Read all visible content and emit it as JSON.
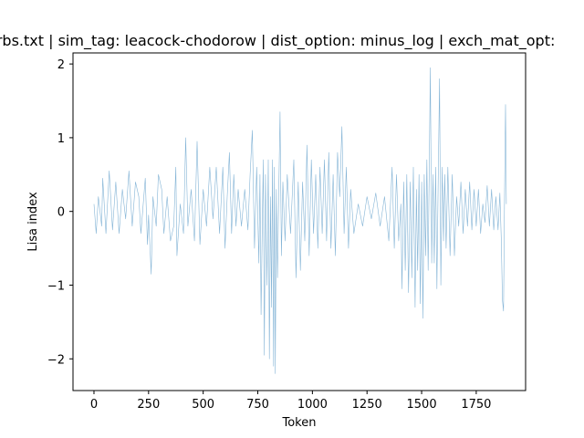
{
  "chart_data": {
    "type": "line",
    "title": "erbs.txt | sim_tag: leacock-chodorow | dist_option: minus_log | exch_mat_opt: ",
    "xlabel": "Token",
    "ylabel": "Lisa index",
    "xlim": [
      -96,
      1976
    ],
    "ylim": [
      -2.43,
      2.15
    ],
    "x_ticks": [
      0,
      250,
      500,
      750,
      1000,
      1250,
      1500,
      1750
    ],
    "x_tick_labels": [
      "0",
      "250",
      "500",
      "750",
      "1000",
      "1250",
      "1500",
      "1750"
    ],
    "y_ticks": [
      -2,
      -1,
      0,
      1,
      2
    ],
    "y_tick_labels": [
      "−2",
      "−1",
      "0",
      "1",
      "2"
    ],
    "grid": false,
    "series": [
      {
        "color": "#1f77b4",
        "points": [
          [
            0,
            0.1
          ],
          [
            10,
            -0.3
          ],
          [
            20,
            0.2
          ],
          [
            35,
            -0.2
          ],
          [
            40,
            0.45
          ],
          [
            55,
            -0.3
          ],
          [
            70,
            0.55
          ],
          [
            85,
            -0.25
          ],
          [
            100,
            0.4
          ],
          [
            115,
            -0.3
          ],
          [
            130,
            0.3
          ],
          [
            145,
            -0.1
          ],
          [
            160,
            0.55
          ],
          [
            175,
            -0.2
          ],
          [
            190,
            0.4
          ],
          [
            205,
            0.2
          ],
          [
            215,
            -0.3
          ],
          [
            235,
            0.45
          ],
          [
            245,
            -0.45
          ],
          [
            250,
            -0.05
          ],
          [
            262,
            -0.85
          ],
          [
            270,
            0.2
          ],
          [
            285,
            -0.2
          ],
          [
            295,
            0.5
          ],
          [
            310,
            0.3
          ],
          [
            320,
            -0.3
          ],
          [
            335,
            0.2
          ],
          [
            350,
            -0.4
          ],
          [
            365,
            -0.2
          ],
          [
            375,
            0.6
          ],
          [
            380,
            -0.6
          ],
          [
            395,
            0.1
          ],
          [
            410,
            -0.3
          ],
          [
            420,
            1.0
          ],
          [
            430,
            -0.2
          ],
          [
            445,
            0.3
          ],
          [
            460,
            -0.4
          ],
          [
            472,
            0.95
          ],
          [
            485,
            -0.45
          ],
          [
            500,
            0.3
          ],
          [
            515,
            -0.2
          ],
          [
            530,
            0.6
          ],
          [
            545,
            -0.1
          ],
          [
            560,
            0.6
          ],
          [
            575,
            -0.3
          ],
          [
            590,
            0.6
          ],
          [
            600,
            -0.5
          ],
          [
            610,
            0.2
          ],
          [
            620,
            0.8
          ],
          [
            630,
            -0.3
          ],
          [
            640,
            0.5
          ],
          [
            650,
            -0.2
          ],
          [
            660,
            0.3
          ],
          [
            675,
            -0.2
          ],
          [
            690,
            0.3
          ],
          [
            705,
            -0.25
          ],
          [
            715,
            0.5
          ],
          [
            725,
            1.1
          ],
          [
            735,
            -0.5
          ],
          [
            745,
            0.6
          ],
          [
            755,
            -0.7
          ],
          [
            760,
            0.5
          ],
          [
            765,
            -1.4
          ],
          [
            770,
            -0.3
          ],
          [
            775,
            0.7
          ],
          [
            780,
            -1.95
          ],
          [
            785,
            0.5
          ],
          [
            792,
            -1.0
          ],
          [
            798,
            0.7
          ],
          [
            803,
            -2.0
          ],
          [
            808,
            0.2
          ],
          [
            813,
            -1.3
          ],
          [
            817,
            0.7
          ],
          [
            822,
            -2.1
          ],
          [
            826,
            0.6
          ],
          [
            830,
            -2.2
          ],
          [
            835,
            0.3
          ],
          [
            840,
            -0.9
          ],
          [
            845,
            0.1
          ],
          [
            852,
            1.35
          ],
          [
            858,
            -0.6
          ],
          [
            865,
            0.4
          ],
          [
            875,
            -0.4
          ],
          [
            885,
            0.5
          ],
          [
            900,
            -0.3
          ],
          [
            915,
            0.7
          ],
          [
            925,
            -0.9
          ],
          [
            935,
            0.4
          ],
          [
            945,
            -0.8
          ],
          [
            955,
            0.4
          ],
          [
            965,
            -0.4
          ],
          [
            975,
            0.9
          ],
          [
            985,
            -0.6
          ],
          [
            995,
            0.7
          ],
          [
            1005,
            -0.3
          ],
          [
            1015,
            0.5
          ],
          [
            1025,
            -0.5
          ],
          [
            1035,
            0.6
          ],
          [
            1045,
            -0.3
          ],
          [
            1055,
            0.7
          ],
          [
            1065,
            -0.4
          ],
          [
            1075,
            0.8
          ],
          [
            1085,
            -0.5
          ],
          [
            1095,
            0.5
          ],
          [
            1105,
            -0.6
          ],
          [
            1115,
            0.8
          ],
          [
            1125,
            0.2
          ],
          [
            1135,
            1.15
          ],
          [
            1145,
            -0.3
          ],
          [
            1155,
            0.6
          ],
          [
            1165,
            -0.5
          ],
          [
            1175,
            0.3
          ],
          [
            1190,
            -0.3
          ],
          [
            1210,
            0.1
          ],
          [
            1230,
            -0.2
          ],
          [
            1250,
            0.2
          ],
          [
            1270,
            -0.1
          ],
          [
            1290,
            0.25
          ],
          [
            1310,
            -0.2
          ],
          [
            1330,
            0.2
          ],
          [
            1350,
            -0.4
          ],
          [
            1365,
            0.6
          ],
          [
            1375,
            -0.5
          ],
          [
            1385,
            0.5
          ],
          [
            1395,
            -0.4
          ],
          [
            1405,
            0.1
          ],
          [
            1410,
            -1.05
          ],
          [
            1418,
            0.4
          ],
          [
            1425,
            -0.8
          ],
          [
            1432,
            0.5
          ],
          [
            1440,
            -1.1
          ],
          [
            1448,
            0.4
          ],
          [
            1455,
            -0.9
          ],
          [
            1462,
            0.6
          ],
          [
            1470,
            -1.3
          ],
          [
            1476,
            0.3
          ],
          [
            1482,
            -0.8
          ],
          [
            1488,
            0.5
          ],
          [
            1494,
            -1.25
          ],
          [
            1500,
            0.4
          ],
          [
            1506,
            -1.45
          ],
          [
            1512,
            0.5
          ],
          [
            1518,
            -0.6
          ],
          [
            1524,
            0.7
          ],
          [
            1530,
            -0.8
          ],
          [
            1536,
            0.9
          ],
          [
            1540,
            1.95
          ],
          [
            1546,
            -0.7
          ],
          [
            1552,
            0.5
          ],
          [
            1558,
            -0.7
          ],
          [
            1564,
            0.6
          ],
          [
            1570,
            -1.05
          ],
          [
            1576,
            0.4
          ],
          [
            1582,
            1.8
          ],
          [
            1588,
            -1.0
          ],
          [
            1594,
            0.6
          ],
          [
            1600,
            -0.4
          ],
          [
            1606,
            0.5
          ],
          [
            1612,
            -0.5
          ],
          [
            1620,
            0.6
          ],
          [
            1630,
            -0.6
          ],
          [
            1640,
            0.5
          ],
          [
            1650,
            -0.6
          ],
          [
            1660,
            0.2
          ],
          [
            1670,
            -0.2
          ],
          [
            1680,
            0.4
          ],
          [
            1690,
            -0.3
          ],
          [
            1700,
            0.3
          ],
          [
            1710,
            -0.2
          ],
          [
            1720,
            0.4
          ],
          [
            1730,
            -0.25
          ],
          [
            1740,
            0.3
          ],
          [
            1750,
            -0.2
          ],
          [
            1760,
            0.3
          ],
          [
            1770,
            -0.3
          ],
          [
            1780,
            0.1
          ],
          [
            1790,
            -0.15
          ],
          [
            1800,
            0.35
          ],
          [
            1810,
            -0.2
          ],
          [
            1820,
            0.3
          ],
          [
            1830,
            -0.25
          ],
          [
            1840,
            0.2
          ],
          [
            1850,
            -0.25
          ],
          [
            1858,
            0.25
          ],
          [
            1865,
            -0.4
          ],
          [
            1870,
            -1.2
          ],
          [
            1875,
            -1.35
          ],
          [
            1880,
            0.3
          ],
          [
            1884,
            1.45
          ],
          [
            1888,
            0.1
          ]
        ]
      }
    ]
  }
}
